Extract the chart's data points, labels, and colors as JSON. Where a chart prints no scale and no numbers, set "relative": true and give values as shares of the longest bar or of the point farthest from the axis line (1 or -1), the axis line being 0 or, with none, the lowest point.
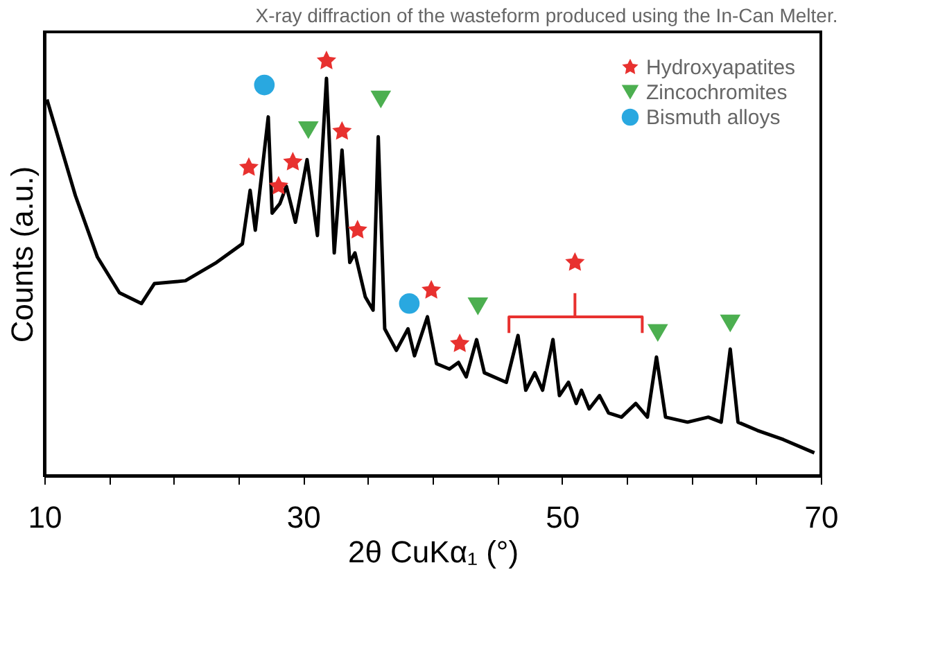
{
  "chart_data": {
    "type": "line",
    "title": "X-ray diffraction of the wasteform produced using the In-Can Melter.",
    "xlabel": "2θ CuKα₁ (°)",
    "ylabel": "Counts (a.u.)",
    "relative": true,
    "xlim": [
      10,
      70
    ],
    "xticks": [
      10,
      {
        "value": 15,
        "label": null
      },
      {
        "value": 20,
        "label": null
      },
      {
        "value": 25,
        "label": null
      },
      30,
      {
        "value": 35,
        "label": null
      },
      {
        "value": 40,
        "label": null
      },
      {
        "value": 45,
        "label": null
      },
      50,
      {
        "value": 55,
        "label": null
      },
      {
        "value": 60,
        "label": null
      },
      {
        "value": 65,
        "label": null
      },
      70
    ],
    "grid": false,
    "legend": "top right",
    "tick_labels": "x",
    "series": [
      {
        "type": "line",
        "color": "#000000",
        "line_style": "solid",
        "x": [
          10.2,
          12.4,
          14.1,
          15.8,
          17.5,
          18.5,
          20.9,
          23.3,
          25.3,
          25.9,
          26.3,
          27.3,
          27.6,
          28.2,
          28.7,
          29.4,
          30.3,
          31.1,
          31.8,
          32.1,
          32.4,
          33.0,
          33.6,
          34.0,
          34.8,
          35.4,
          35.8,
          36.3,
          37.2,
          38.1,
          38.6,
          39.6,
          40.3,
          41.3,
          42.0,
          42.6,
          43.4,
          44.0,
          45.7,
          46.6,
          47.2,
          47.9,
          48.5,
          49.3,
          49.8,
          50.5,
          51.1,
          51.5,
          52.1,
          52.9,
          53.6,
          54.6,
          55.7,
          56.6,
          57.3,
          58.0,
          59.7,
          61.3,
          62.3,
          63.0,
          63.6,
          65.1,
          67.1,
          69.5
        ],
        "values": [
          0.907,
          0.675,
          0.527,
          0.441,
          0.415,
          0.463,
          0.47,
          0.514,
          0.559,
          0.688,
          0.592,
          0.865,
          0.633,
          0.656,
          0.698,
          0.611,
          0.762,
          0.579,
          0.958,
          0.752,
          0.537,
          0.785,
          0.514,
          0.537,
          0.431,
          0.399,
          0.817,
          0.354,
          0.302,
          0.354,
          0.289,
          0.383,
          0.27,
          0.257,
          0.273,
          0.238,
          0.328,
          0.248,
          0.225,
          0.338,
          0.206,
          0.248,
          0.206,
          0.328,
          0.193,
          0.225,
          0.174,
          0.206,
          0.161,
          0.193,
          0.151,
          0.141,
          0.174,
          0.141,
          0.286,
          0.141,
          0.129,
          0.141,
          0.129,
          0.305,
          0.129,
          0.109,
          0.087,
          0.055
        ]
      },
      {
        "type": "scatter",
        "name": "Hydroxyapatites",
        "color": "#e8312f",
        "marker": "star",
        "x": [
          25.8,
          28.1,
          29.2,
          31.8,
          33.0,
          34.2,
          39.9,
          42.1,
          51.0
        ],
        "values": [
          0.743,
          0.698,
          0.756,
          1.0,
          0.83,
          0.592,
          0.447,
          0.318,
          0.514
        ]
      },
      {
        "type": "scatter",
        "name": "Zincochromites",
        "color": "#4caf50",
        "marker": "triangle",
        "x": [
          30.4,
          36.0,
          43.5,
          57.4,
          63.0
        ],
        "values": [
          0.833,
          0.907,
          0.408,
          0.344,
          0.367
        ]
      },
      {
        "type": "scatter",
        "name": "Bismuth alloys",
        "color": "#29a8e0",
        "marker": "circle",
        "x": [
          27.0,
          38.2
        ],
        "values": [
          0.942,
          0.415
        ]
      },
      {
        "type": "line",
        "color": "#e8312f",
        "line_style": "solid",
        "x": [
          45.9,
          45.9,
          56.2,
          56.2
        ],
        "values": [
          0.344,
          0.383,
          0.383,
          0.344
        ]
      },
      {
        "type": "line",
        "color": "#e8312f",
        "line_style": "solid",
        "x": [
          51.0,
          51.0
        ],
        "values": [
          0.383,
          0.44
        ]
      }
    ]
  }
}
